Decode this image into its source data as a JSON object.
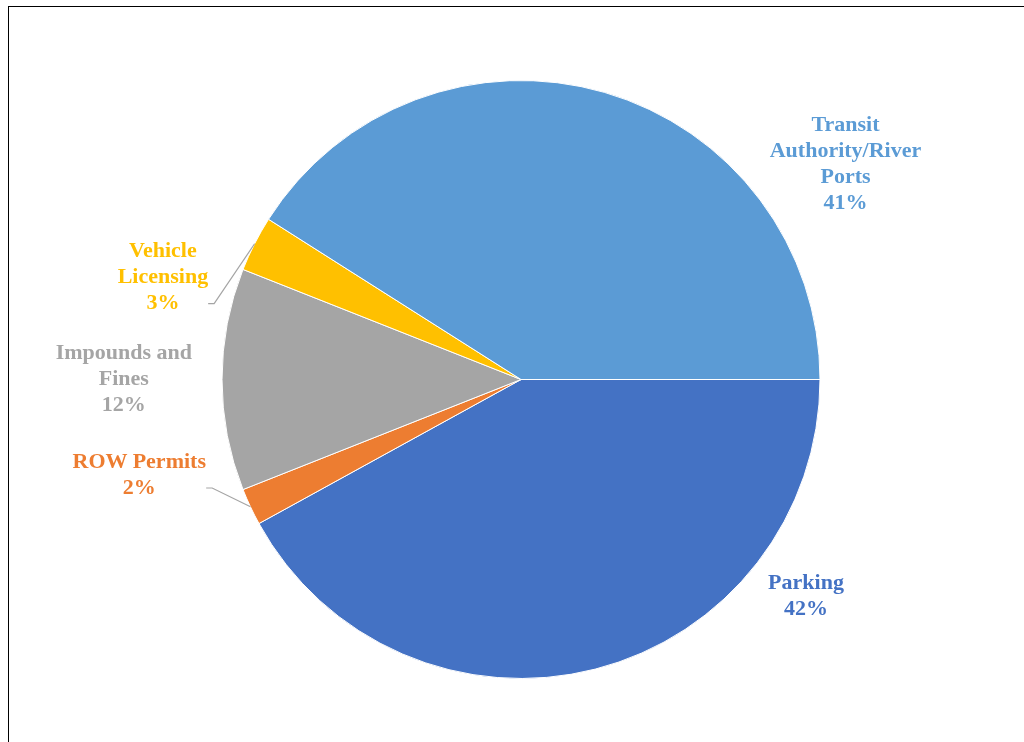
{
  "chart_data": {
    "type": "pie",
    "categories": [
      "Parking",
      "ROW Permits",
      "Impounds and Fines",
      "Vehicle Licensing",
      "Transit Authority/River Ports"
    ],
    "values": [
      42,
      2,
      12,
      3,
      41
    ],
    "value_labels": [
      "42%",
      "2%",
      "12%",
      "3%",
      "41%"
    ],
    "colors": [
      "#4472c4",
      "#ed7d31",
      "#a5a5a5",
      "#ffc000",
      "#5b9bd5"
    ],
    "legend": false
  }
}
